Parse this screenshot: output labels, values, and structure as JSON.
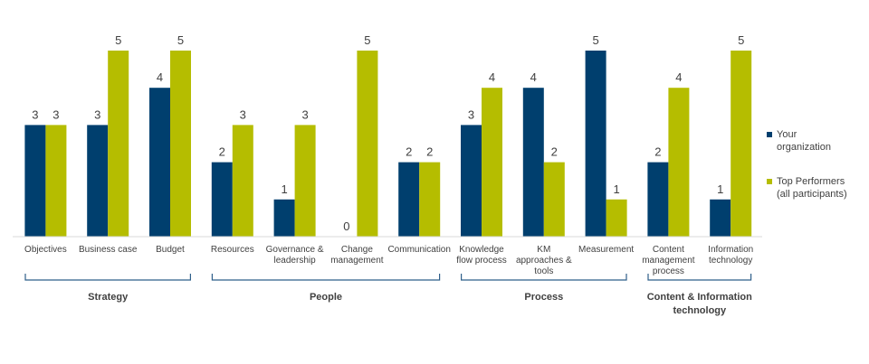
{
  "chart_data": {
    "type": "bar",
    "categories": [
      [
        "Objectives"
      ],
      [
        "Business case"
      ],
      [
        "Budget"
      ],
      [
        "Resources"
      ],
      [
        "Governance &",
        "leadership"
      ],
      [
        "Change",
        "management"
      ],
      [
        "Communication"
      ],
      [
        "Knowledge",
        "flow process"
      ],
      [
        "KM",
        "approaches &",
        "tools"
      ],
      [
        "Measurement"
      ],
      [
        "Content",
        "management",
        "process"
      ],
      [
        "Information",
        "technology"
      ]
    ],
    "series": [
      {
        "name": "Your organization",
        "legend_lines": [
          "Your",
          "organization"
        ],
        "color": "#003f6e",
        "values": [
          3,
          3,
          4,
          2,
          1,
          0,
          2,
          3,
          4,
          5,
          2,
          1
        ]
      },
      {
        "name": "Top Performers (all participants)",
        "legend_lines": [
          "Top Performers",
          "(all participants)"
        ],
        "color": "#b5bd00",
        "values": [
          3,
          5,
          5,
          3,
          3,
          5,
          2,
          4,
          2,
          1,
          4,
          5
        ]
      }
    ],
    "groups": [
      {
        "label": [
          "Strategy"
        ],
        "start": 0,
        "end": 2
      },
      {
        "label": [
          "People"
        ],
        "start": 3,
        "end": 6
      },
      {
        "label": [
          "Process"
        ],
        "start": 7,
        "end": 9
      },
      {
        "label": [
          "Content & Information",
          "technology"
        ],
        "start": 10,
        "end": 11
      }
    ],
    "ylim": [
      0,
      5
    ],
    "grid": false,
    "legend_position": "right",
    "title": "",
    "xlabel": "",
    "ylabel": ""
  }
}
